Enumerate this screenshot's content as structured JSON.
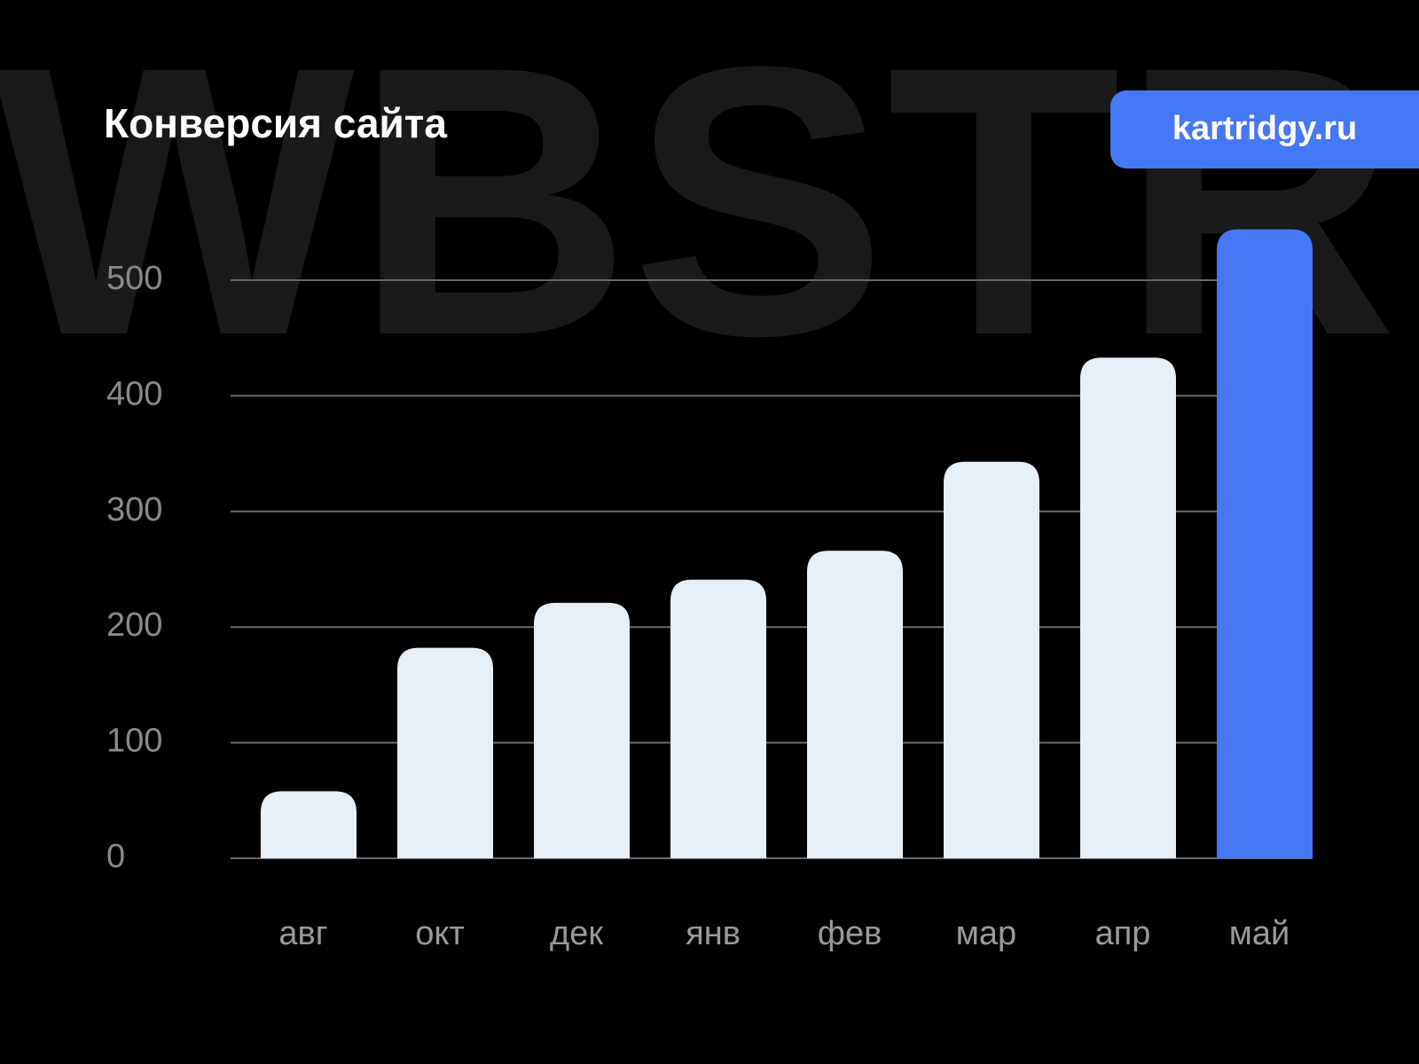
{
  "chart_data": {
    "type": "bar",
    "watermark": "WBSTR",
    "title": "Конверсия сайта",
    "badge": "kartridgy.ru",
    "categories": [
      "авг",
      "окт",
      "дек",
      "янв",
      "фев",
      "мар",
      "апр",
      "май"
    ],
    "values": [
      58,
      182,
      221,
      241,
      266,
      343,
      433,
      544
    ],
    "colors": [
      "#e6eef6",
      "#e6eef6",
      "#e6eef6",
      "#e6eef6",
      "#e6eef6",
      "#e6eef6",
      "#e6eef6",
      "#4677f5"
    ],
    "ylim": [
      0,
      500
    ],
    "yticks": [
      0,
      100,
      200,
      300,
      400,
      500
    ],
    "grid": true
  }
}
